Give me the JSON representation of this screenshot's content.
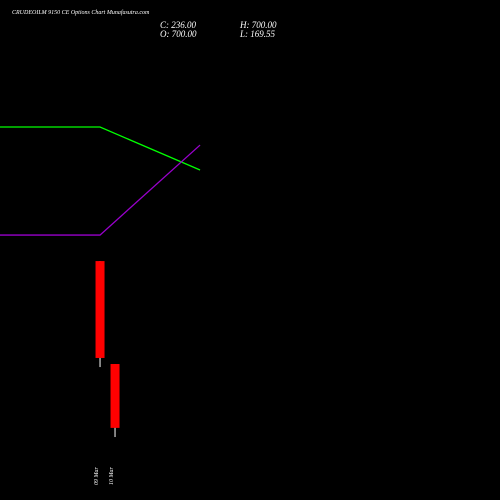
{
  "chart_data": {
    "type": "candlestick",
    "title": "CRUDEOILM 9150  CE Options  Chart Munafasutra.com",
    "ohlc_labels": [
      "C: 236.00",
      "H: 700.00",
      "O: 700.00",
      "L: 169.55"
    ],
    "categories": [
      "09 Mar",
      "10 Mar"
    ],
    "x": [
      0,
      1
    ],
    "open": [
      1448,
      700
    ],
    "high": [
      1448,
      700
    ],
    "low": [
      678,
      169.55
    ],
    "close": [
      744,
      236
    ],
    "candle_color": "#ff0000",
    "lines": [
      {
        "color": "#00ff00",
        "x": [
          -6.67,
          0,
          6.67
        ],
        "values": [
          2422,
          2422,
          2110
        ]
      },
      {
        "color": "#9900cc",
        "x": [
          -6.67,
          0,
          6.67
        ],
        "values": [
          1637,
          1637,
          2291
        ]
      }
    ],
    "xlim": [
      -6.67,
      26.67
    ],
    "ylim": [
      -288,
      3345
    ]
  }
}
